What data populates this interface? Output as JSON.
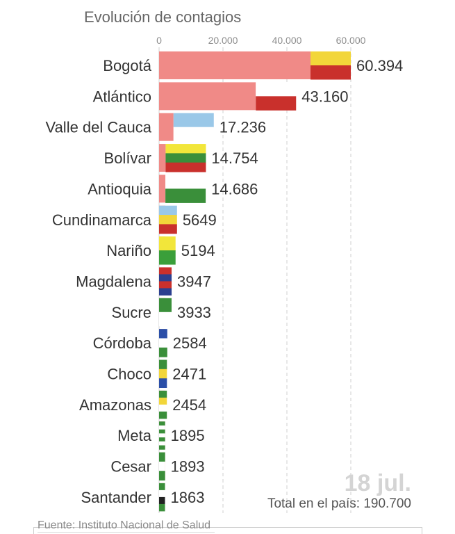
{
  "chart_data": {
    "type": "bar",
    "orientation": "horizontal",
    "subtitle": "Evolución de contagios",
    "date": "18 jul.",
    "total": "Total en el país: 190.700",
    "source": "Fuente: Instituto Nacional de Salud",
    "xlim": [
      0,
      60394
    ],
    "ticks": [
      {
        "value": 0,
        "label": "0"
      },
      {
        "value": 20000,
        "label": "20.000"
      },
      {
        "value": 40000,
        "label": "40.000"
      },
      {
        "value": 60000,
        "label": "60.000"
      }
    ],
    "bar_color": "#f08a87",
    "categories": [
      "Bogotá",
      "Atlántico",
      "Valle del Cauca",
      "Bolívar",
      "Antioquia",
      "Cundinamarca",
      "Nariño",
      "Magdalena",
      "Sucre",
      "Córdoba",
      "Choco",
      "Amazonas",
      "Meta",
      "Cesar",
      "Santander"
    ],
    "values": [
      60394,
      43160,
      17236,
      14754,
      14686,
      5649,
      5194,
      3947,
      3933,
      2584,
      2471,
      2454,
      1895,
      1893,
      1863
    ],
    "value_labels": [
      "60.394",
      "43.160",
      "17.236",
      "14.754",
      "14.686",
      "5649",
      "5194",
      "3947",
      "3933",
      "2584",
      "2471",
      "2454",
      "1895",
      "1893",
      "1863"
    ],
    "flags": [
      [
        "#f2d63a",
        "#c9302c"
      ],
      [
        "#ffffff",
        "#c9302c"
      ],
      [
        "#9ac8e8",
        "#ffffff"
      ],
      [
        "#f2e63a",
        "#3a8f3a",
        "#c9302c"
      ],
      [
        "#ffffff",
        "#3a8f3a"
      ],
      [
        "#9ac8e8",
        "#f2d63a",
        "#c9302c"
      ],
      [
        "#f2e63a",
        "#3a9f3a"
      ],
      [
        "#c9302c",
        "#2b3f8f",
        "#c9302c",
        "#2b3f8f"
      ],
      [
        "#3a8f3a",
        "#ffffff"
      ],
      [
        "#2b4fa8",
        "#ffffff",
        "#3a8f3a"
      ],
      [
        "#3a8f3a",
        "#f2d63a",
        "#2b4fa8"
      ],
      [
        "#3a8f3a",
        "#f2d63a",
        "#ffffff",
        "#3a8f3a"
      ],
      [
        "#3a8f3a",
        "#ffffff",
        "#3a8f3a",
        "#ffffff",
        "#3a8f3a",
        "#ffffff",
        "#3a8f3a"
      ],
      [
        "#3a8f3a",
        "#ffffff",
        "#3a8f3a"
      ],
      [
        "#3a8f3a",
        "#ffffff",
        "#222222",
        "#3a8f3a"
      ]
    ]
  }
}
